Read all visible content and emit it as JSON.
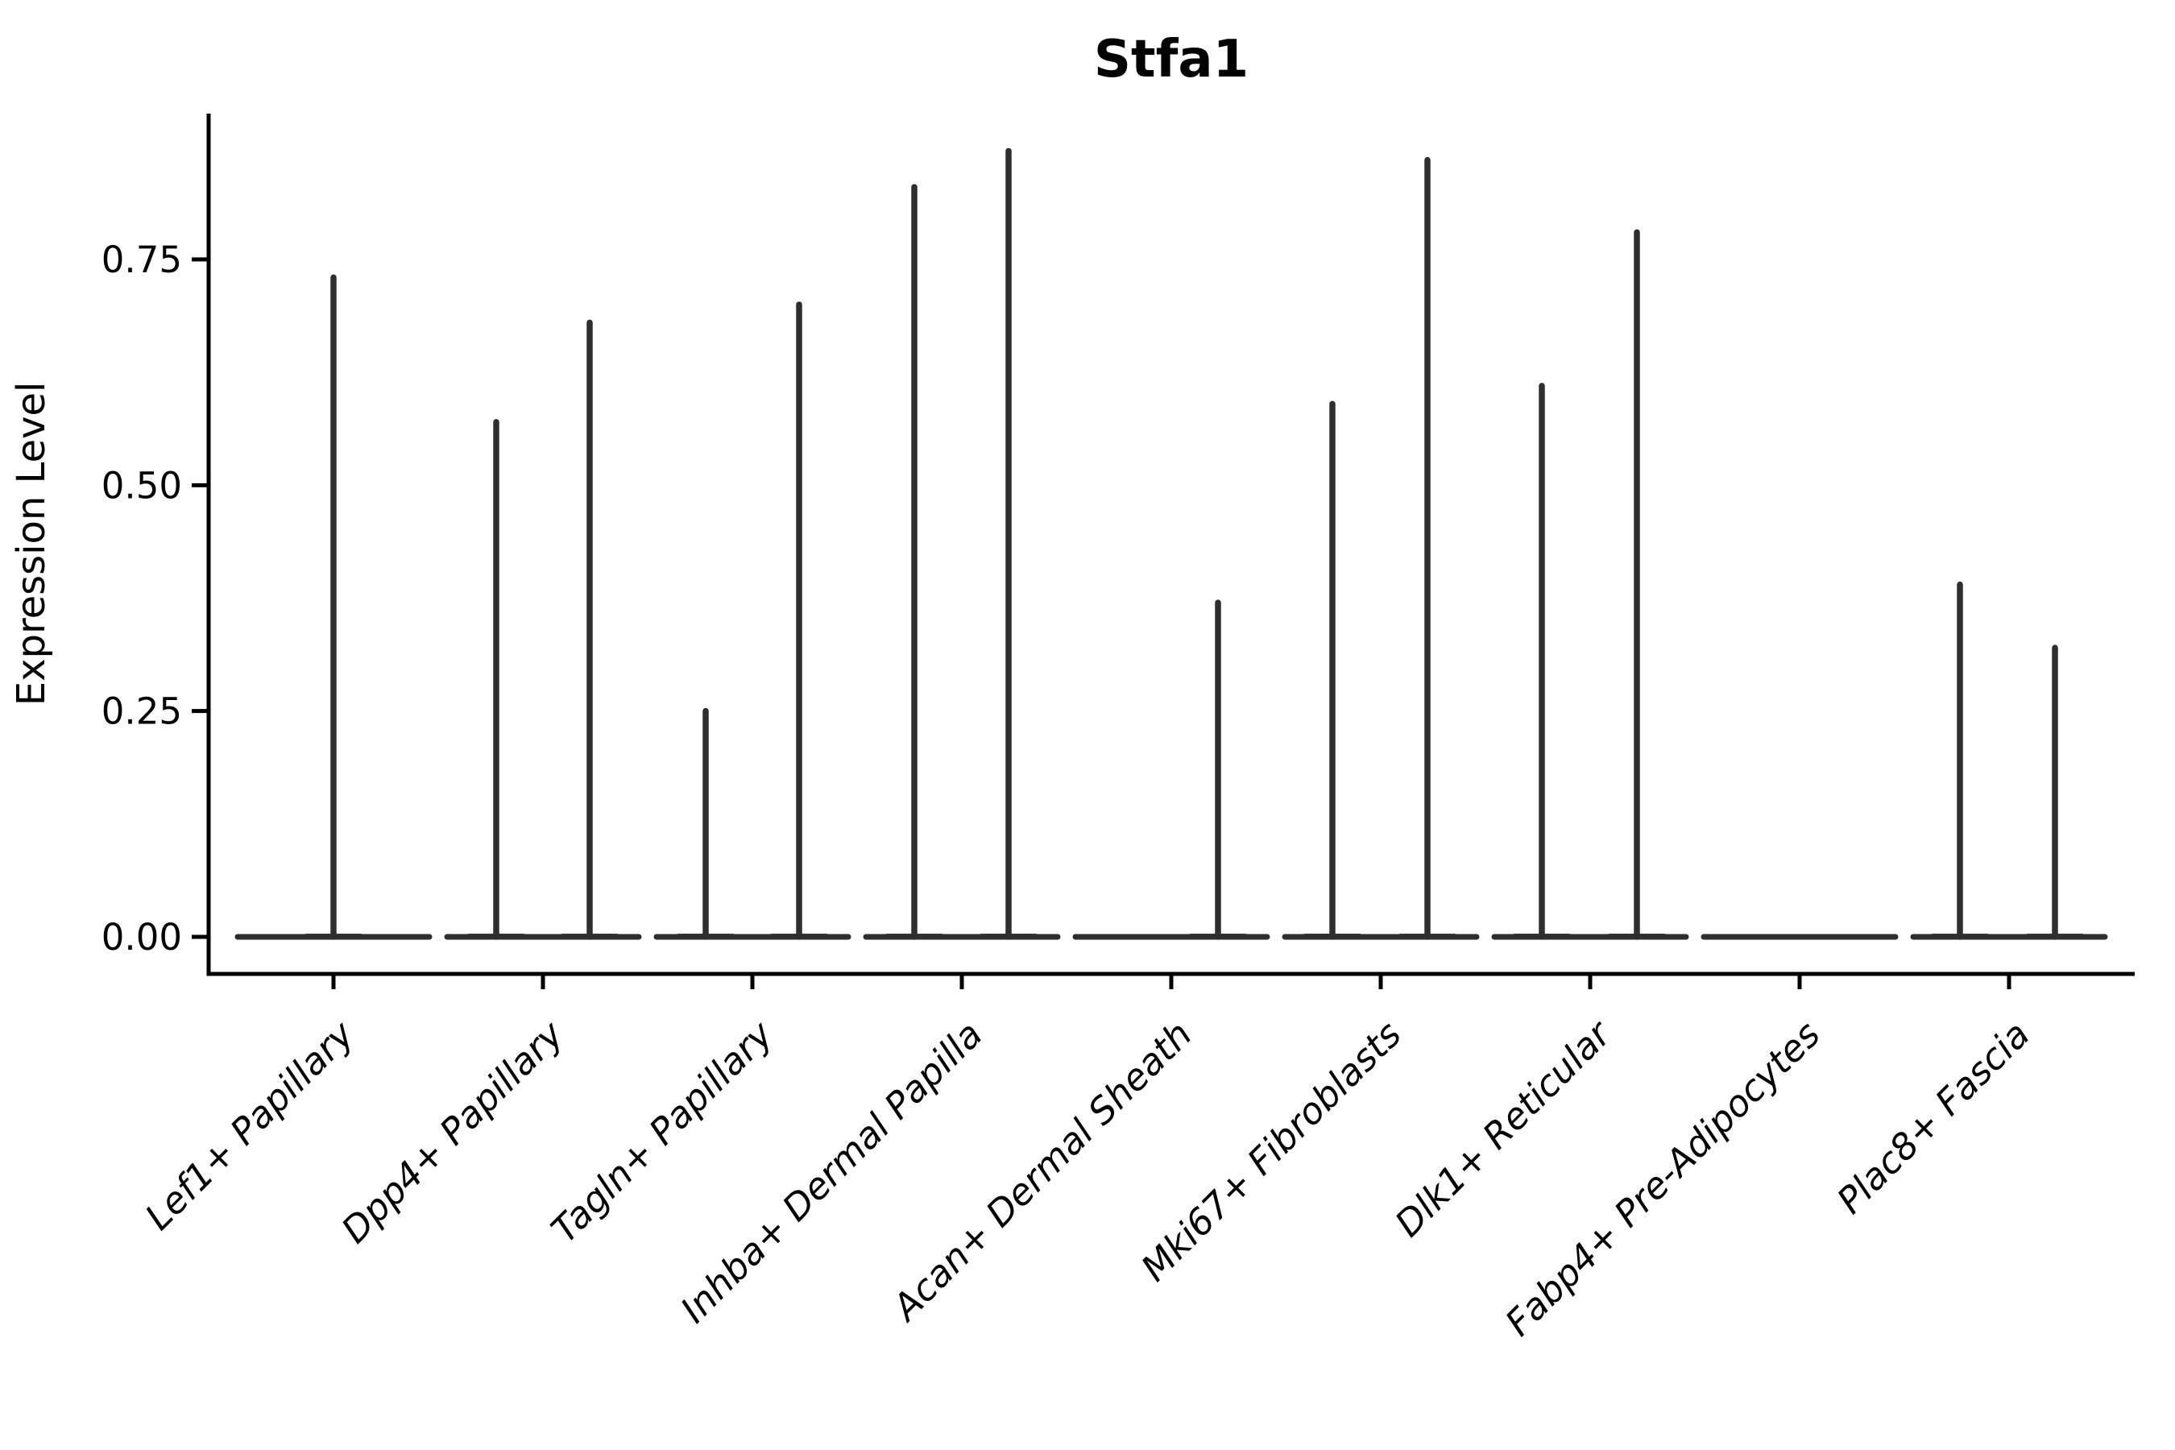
{
  "chart_data": {
    "type": "violin",
    "title": "Stfa1",
    "ylabel": "Expression Level",
    "xlabel": "",
    "ylim": [
      0,
      0.91
    ],
    "yticks": [
      {
        "label": "0.00",
        "value": 0.0
      },
      {
        "label": "0.25",
        "value": 0.25
      },
      {
        "label": "0.50",
        "value": 0.5
      },
      {
        "label": "0.75",
        "value": 0.75
      }
    ],
    "grid": false,
    "legend": false,
    "categories": [
      "Lef1+ Papillary",
      "Dpp4+ Papillary",
      "Tagln+ Papillary",
      "Inhba+ Dermal Papilla",
      "Acan+ Dermal Sheath",
      "Mki67+ Fibroblasts",
      "Dlk1+ Reticular",
      "Fabp4+ Pre-Adipocytes",
      "Plac8+ Fascia"
    ],
    "violins": [
      {
        "category": "Lef1+ Papillary",
        "baseline_value": 0,
        "spikes": [
          {
            "offset": 0,
            "max": 0.73
          }
        ]
      },
      {
        "category": "Dpp4+ Papillary",
        "baseline_value": 0,
        "spikes": [
          {
            "offset": -58,
            "max": 0.57
          },
          {
            "offset": 58,
            "max": 0.68
          }
        ]
      },
      {
        "category": "Tagln+ Papillary",
        "baseline_value": 0,
        "spikes": [
          {
            "offset": -58,
            "max": 0.25
          },
          {
            "offset": 58,
            "max": 0.7
          }
        ]
      },
      {
        "category": "Inhba+ Dermal Papilla",
        "baseline_value": 0,
        "spikes": [
          {
            "offset": -59,
            "max": 0.83
          },
          {
            "offset": 58,
            "max": 0.87
          }
        ]
      },
      {
        "category": "Acan+ Dermal Sheath",
        "baseline_value": 0,
        "spikes": [
          {
            "offset": 58,
            "max": 0.37
          }
        ]
      },
      {
        "category": "Mki67+ Fibroblasts",
        "baseline_value": 0,
        "spikes": [
          {
            "offset": -60,
            "max": 0.59
          },
          {
            "offset": 58,
            "max": 0.86
          }
        ]
      },
      {
        "category": "Dlk1+ Reticular",
        "baseline_value": 0,
        "spikes": [
          {
            "offset": -60,
            "max": 0.61
          },
          {
            "offset": 58,
            "max": 0.78
          }
        ]
      },
      {
        "category": "Fabp4+ Pre-Adipocytes",
        "baseline_value": 0,
        "spikes": []
      },
      {
        "category": "Plac8+ Fascia",
        "baseline_value": 0,
        "spikes": [
          {
            "offset": -61,
            "max": 0.39
          },
          {
            "offset": 57,
            "max": 0.32
          }
        ]
      }
    ],
    "colors": {
      "violin": "#2e2e2e",
      "axis": "#000000",
      "text": "#000000",
      "background": "#ffffff"
    }
  }
}
